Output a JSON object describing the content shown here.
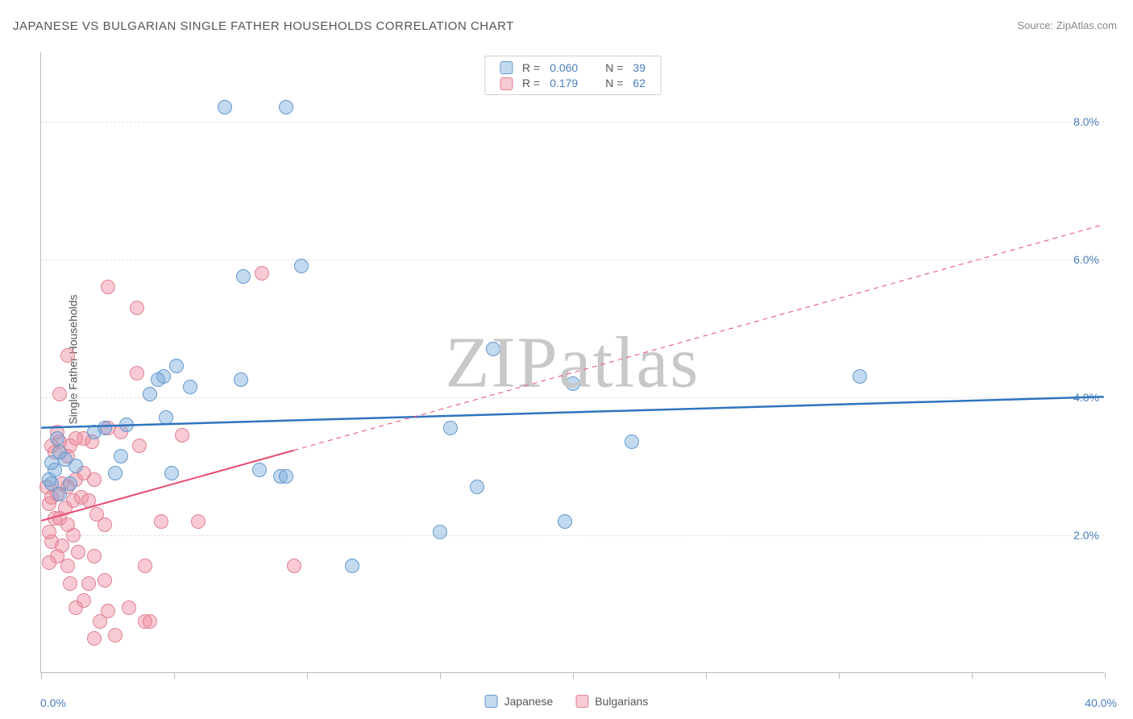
{
  "chart": {
    "title": "JAPANESE VS BULGARIAN SINGLE FATHER HOUSEHOLDS CORRELATION CHART",
    "source_label": "Source:",
    "source_name": "ZipAtlas.com",
    "watermark": "ZIPatlas",
    "y_axis_title": "Single Father Households",
    "type": "scatter",
    "xlim": [
      0,
      40
    ],
    "ylim": [
      0,
      9
    ],
    "x_ticks": [
      0,
      5,
      10,
      15,
      20,
      25,
      30,
      35,
      40
    ],
    "x_min_label": "0.0%",
    "x_max_label": "40.0%",
    "y_gridlines": [
      {
        "v": 2,
        "label": "2.0%"
      },
      {
        "v": 4,
        "label": "4.0%"
      },
      {
        "v": 6,
        "label": "6.0%"
      },
      {
        "v": 8,
        "label": "8.0%"
      }
    ],
    "background_color": "#ffffff",
    "grid_color": "#e0e0e0",
    "axis_color": "#bbbbbb",
    "label_color": "#555555",
    "value_color": "#4a7ebb",
    "series": {
      "japanese": {
        "label": "Japanese",
        "fill": "rgba(120,170,220,0.45)",
        "stroke": "#6699cc",
        "line_color": "#2f74c0",
        "line_width": 2.5,
        "marker_radius": 9,
        "R": "0.060",
        "N": "39",
        "trend": {
          "y_at_x0": 3.55,
          "y_at_x40": 4.0,
          "solid_until_x": 40
        },
        "points": [
          [
            6.9,
            8.2
          ],
          [
            9.2,
            8.2
          ],
          [
            9.8,
            5.9
          ],
          [
            7.6,
            5.75
          ],
          [
            17.0,
            4.7
          ],
          [
            20.0,
            4.2
          ],
          [
            30.8,
            4.3
          ],
          [
            15.4,
            3.55
          ],
          [
            22.2,
            3.35
          ],
          [
            16.4,
            2.7
          ],
          [
            19.7,
            2.2
          ],
          [
            15.0,
            2.05
          ],
          [
            11.7,
            1.55
          ],
          [
            9.0,
            2.85
          ],
          [
            9.2,
            2.85
          ],
          [
            8.2,
            2.95
          ],
          [
            7.5,
            4.25
          ],
          [
            4.6,
            4.3
          ],
          [
            5.6,
            4.15
          ],
          [
            5.1,
            4.45
          ],
          [
            4.4,
            4.25
          ],
          [
            4.1,
            4.05
          ],
          [
            4.7,
            3.7
          ],
          [
            3.2,
            3.6
          ],
          [
            2.4,
            3.55
          ],
          [
            2.0,
            3.5
          ],
          [
            2.8,
            2.9
          ],
          [
            4.9,
            2.9
          ],
          [
            3.0,
            3.15
          ],
          [
            1.3,
            3.0
          ],
          [
            1.1,
            2.75
          ],
          [
            0.9,
            3.1
          ],
          [
            0.7,
            3.2
          ],
          [
            0.6,
            3.4
          ],
          [
            0.5,
            2.95
          ],
          [
            0.7,
            2.6
          ],
          [
            0.4,
            2.75
          ],
          [
            0.4,
            3.05
          ],
          [
            0.3,
            2.8
          ]
        ]
      },
      "bulgarians": {
        "label": "Bulgarians",
        "fill": "rgba(240,140,160,0.45)",
        "stroke": "#e08090",
        "line_color": "#e64c72",
        "line_width": 2,
        "marker_radius": 9,
        "R": "0.179",
        "N": "62",
        "trend": {
          "y_at_x0": 2.2,
          "y_at_x40": 6.5,
          "solid_until_x": 9.5
        },
        "points": [
          [
            2.5,
            5.6
          ],
          [
            3.6,
            5.3
          ],
          [
            8.3,
            5.8
          ],
          [
            1.0,
            4.6
          ],
          [
            3.6,
            4.35
          ],
          [
            0.7,
            4.05
          ],
          [
            5.3,
            3.45
          ],
          [
            3.0,
            3.5
          ],
          [
            2.5,
            3.55
          ],
          [
            3.7,
            3.3
          ],
          [
            1.9,
            3.35
          ],
          [
            1.6,
            3.4
          ],
          [
            1.3,
            3.4
          ],
          [
            1.1,
            3.3
          ],
          [
            1.0,
            3.15
          ],
          [
            0.7,
            3.35
          ],
          [
            0.6,
            3.5
          ],
          [
            0.5,
            3.2
          ],
          [
            0.4,
            3.3
          ],
          [
            5.9,
            2.2
          ],
          [
            4.5,
            2.2
          ],
          [
            3.9,
            1.55
          ],
          [
            3.9,
            0.75
          ],
          [
            4.1,
            0.75
          ],
          [
            2.8,
            0.55
          ],
          [
            3.3,
            0.95
          ],
          [
            2.4,
            1.35
          ],
          [
            2.0,
            1.7
          ],
          [
            1.8,
            1.3
          ],
          [
            1.6,
            1.05
          ],
          [
            2.2,
            0.75
          ],
          [
            2.0,
            0.5
          ],
          [
            2.5,
            0.9
          ],
          [
            1.3,
            0.95
          ],
          [
            1.1,
            1.3
          ],
          [
            1.0,
            1.55
          ],
          [
            1.4,
            1.75
          ],
          [
            1.2,
            2.0
          ],
          [
            1.0,
            2.15
          ],
          [
            0.8,
            1.85
          ],
          [
            0.6,
            1.7
          ],
          [
            0.4,
            1.9
          ],
          [
            0.3,
            2.05
          ],
          [
            0.5,
            2.25
          ],
          [
            0.7,
            2.25
          ],
          [
            0.9,
            2.4
          ],
          [
            1.2,
            2.5
          ],
          [
            1.5,
            2.55
          ],
          [
            1.8,
            2.5
          ],
          [
            2.1,
            2.3
          ],
          [
            2.4,
            2.15
          ],
          [
            0.3,
            2.45
          ],
          [
            0.2,
            2.7
          ],
          [
            0.4,
            2.55
          ],
          [
            0.6,
            2.6
          ],
          [
            0.8,
            2.75
          ],
          [
            1.0,
            2.7
          ],
          [
            1.3,
            2.8
          ],
          [
            1.6,
            2.9
          ],
          [
            2.0,
            2.8
          ],
          [
            9.5,
            1.55
          ],
          [
            0.3,
            1.6
          ]
        ]
      }
    },
    "legend_text": {
      "R": "R =",
      "N": "N ="
    }
  }
}
